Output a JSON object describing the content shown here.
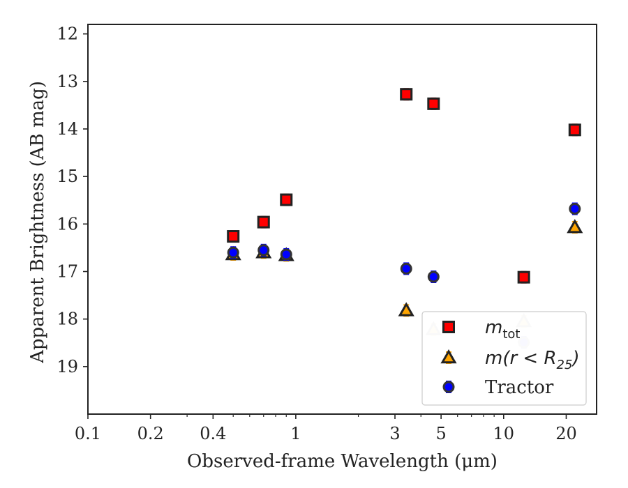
{
  "chart_data": {
    "type": "scatter",
    "title": "",
    "xlabel": "Observed-frame Wavelength (μm)",
    "ylabel": "Apparent Brightness (AB mag)",
    "xscale": "log",
    "xlim": [
      0.1,
      28
    ],
    "ylim": [
      20,
      11.8
    ],
    "y_inverted": true,
    "x_tick_labels": [
      "0.1",
      "0.2",
      "0.4",
      "1",
      "3",
      "5",
      "10",
      "20"
    ],
    "x_ticks": [
      0.1,
      0.2,
      0.4,
      1,
      3,
      5,
      10,
      20
    ],
    "y_ticks": [
      12,
      13,
      14,
      15,
      16,
      17,
      18,
      19
    ],
    "y_tick_labels": [
      "12",
      "13",
      "14",
      "15",
      "16",
      "17",
      "18",
      "19"
    ],
    "grid": false,
    "legend_placement": "bottom-right",
    "series": [
      {
        "name": "m_tot",
        "legend_main": "m",
        "legend_sub": "tot",
        "marker": "square",
        "color": "#ff0000",
        "points": [
          {
            "x": 0.5,
            "y": 16.26
          },
          {
            "x": 0.7,
            "y": 15.96
          },
          {
            "x": 0.9,
            "y": 15.49
          },
          {
            "x": 3.4,
            "y": 13.27
          },
          {
            "x": 4.6,
            "y": 13.47
          },
          {
            "x": 12.5,
            "y": 17.12
          },
          {
            "x": 22,
            "y": 14.02
          }
        ]
      },
      {
        "name": "m(r < R25)",
        "legend_main": "m(r < R",
        "legend_sub": "25",
        "legend_close": ")",
        "marker": "triangle",
        "color": "#ffa500",
        "points": [
          {
            "x": 0.5,
            "y": 16.64
          },
          {
            "x": 0.7,
            "y": 16.6
          },
          {
            "x": 0.9,
            "y": 16.66
          },
          {
            "x": 3.4,
            "y": 17.82
          },
          {
            "x": 4.6,
            "y": 18.22,
            "faded": true
          },
          {
            "x": 12.5,
            "y": 18.05,
            "faded": true
          },
          {
            "x": 22,
            "y": 16.07
          }
        ]
      },
      {
        "name": "Tractor",
        "legend_main": "Tractor",
        "marker": "circle",
        "color": "#0000ff",
        "points": [
          {
            "x": 0.5,
            "y": 16.6
          },
          {
            "x": 0.7,
            "y": 16.55
          },
          {
            "x": 0.9,
            "y": 16.64
          },
          {
            "x": 3.4,
            "y": 16.94
          },
          {
            "x": 4.6,
            "y": 17.11
          },
          {
            "x": 12.5,
            "y": 18.49,
            "faded": true
          },
          {
            "x": 22,
            "y": 15.68
          }
        ]
      }
    ]
  }
}
